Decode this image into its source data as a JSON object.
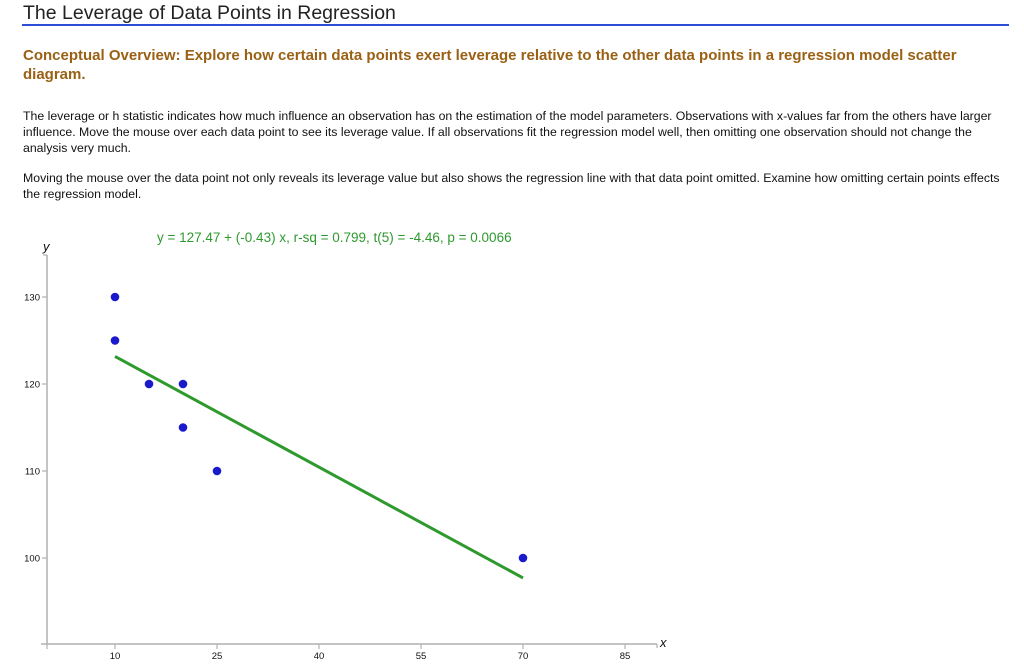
{
  "header": {
    "title": "The Leverage of Data Points in Regression",
    "rule_color": "#2a4fd6"
  },
  "overview": {
    "text": "Conceptual Overview: Explore how certain data points exert leverage relative to the other data points in a regression model scatter diagram.",
    "color": "#9a6115"
  },
  "paragraphs": [
    "The leverage or h statistic indicates how much influence an observation has on the estimation of the model parameters. Observations with x-values far from the others have larger influence. Move the mouse over each data point to see its leverage value. If all observations fit the regression model well, then omitting one observation should not change the analysis very much.",
    "Moving the mouse over the data point not only reveals its leverage value but also shows the regression line with that data point omitted. Examine how omitting certain points effects the regression model."
  ],
  "equation": {
    "text": "y = 127.47 + (-0.43) x, r-sq = 0.799, t(5) = -4.46, p = 0.0066",
    "color": "#2e9a2e"
  },
  "chart_data": {
    "type": "scatter",
    "title": "",
    "xlabel": "x",
    "ylabel": "y",
    "x_ticks": [
      10,
      25,
      40,
      55,
      70,
      85
    ],
    "y_ticks": [
      100,
      110,
      120,
      130
    ],
    "xlim": [
      0,
      90
    ],
    "ylim": [
      90,
      135
    ],
    "grid": false,
    "points": [
      {
        "x": 10,
        "y": 130
      },
      {
        "x": 10,
        "y": 125
      },
      {
        "x": 15,
        "y": 120
      },
      {
        "x": 20,
        "y": 120
      },
      {
        "x": 20,
        "y": 115
      },
      {
        "x": 25,
        "y": 110
      },
      {
        "x": 70,
        "y": 100
      }
    ],
    "point_color": "#1a1acc",
    "regression_line": {
      "intercept": 127.47,
      "slope": -0.43,
      "x_start": 10,
      "x_end": 70,
      "color": "#2e9a2e",
      "r_sq": 0.799,
      "t": -4.46,
      "df": 5,
      "p": 0.0066
    }
  }
}
